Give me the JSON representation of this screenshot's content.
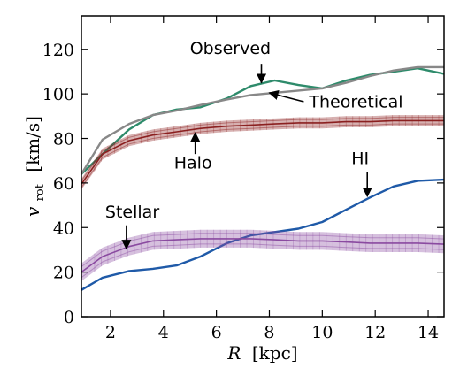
{
  "chart_data": {
    "type": "line",
    "xlabel_var": "R",
    "xlabel_unit": "[kpc]",
    "ylabel_var": "v",
    "ylabel_sub": "rot",
    "ylabel_unit": "[km/s]",
    "xlim": [
      0.9,
      14.6
    ],
    "ylim": [
      0,
      135
    ],
    "xticks": [
      2,
      4,
      6,
      8,
      10,
      12,
      14
    ],
    "yticks": [
      0,
      20,
      40,
      60,
      80,
      100,
      120
    ],
    "grid": false,
    "series": [
      {
        "key": "observed",
        "name": "Observed",
        "color": "#2e8b6b",
        "band": 0,
        "x": [
          0.9,
          1.7,
          2.7,
          3.6,
          4.5,
          5.4,
          6.4,
          7.3,
          8.2,
          9.1,
          10.0,
          10.9,
          11.8,
          12.7,
          13.6,
          14.6
        ],
        "y": [
          64,
          73,
          84,
          90.5,
          93,
          94,
          98,
          103.5,
          106,
          104,
          102.5,
          106,
          108.5,
          110,
          111.5,
          109
        ]
      },
      {
        "key": "theoretical",
        "name": "Theoretical",
        "color": "#888888",
        "band": 0,
        "x": [
          0.9,
          1.7,
          2.7,
          3.6,
          4.5,
          5.4,
          6.4,
          7.3,
          8.2,
          9.1,
          10.0,
          10.9,
          11.8,
          12.7,
          13.6,
          14.6
        ],
        "y": [
          64,
          79.5,
          86.5,
          90.5,
          92.5,
          95,
          97.5,
          99.5,
          100.5,
          101.5,
          102.5,
          105,
          108,
          110.5,
          112,
          112
        ]
      },
      {
        "key": "halo",
        "name": "Halo",
        "color": "#8b2020",
        "band": 2.5,
        "x": [
          0.9,
          1.7,
          2.7,
          3.6,
          4.5,
          5.4,
          6.4,
          7.3,
          8.2,
          9.1,
          10.0,
          10.9,
          11.8,
          12.7,
          13.6,
          14.6
        ],
        "y": [
          59.5,
          73,
          79,
          81.5,
          83,
          84.5,
          85.5,
          86,
          86.5,
          87,
          87,
          87.5,
          87.5,
          88,
          88,
          88
        ]
      },
      {
        "key": "hi",
        "name": "HI",
        "color": "#1f5aa8",
        "band": 0,
        "x": [
          0.9,
          1.7,
          2.7,
          3.6,
          4.5,
          5.4,
          6.4,
          7.3,
          8.2,
          9.1,
          10.0,
          10.9,
          11.8,
          12.7,
          13.6,
          14.6
        ],
        "y": [
          12,
          17.5,
          20.5,
          21.5,
          23,
          27,
          33,
          36.5,
          38,
          39.5,
          42.5,
          48,
          53.5,
          58.5,
          61,
          61.5
        ]
      },
      {
        "key": "stellar",
        "name": "Stellar",
        "color": "#8a4aa0",
        "band": 4,
        "x": [
          0.9,
          1.7,
          2.7,
          3.6,
          4.5,
          5.4,
          6.4,
          7.3,
          8.2,
          9.1,
          10.0,
          10.9,
          11.8,
          12.7,
          13.6,
          14.6
        ],
        "y": [
          20,
          27,
          31.5,
          34,
          34.5,
          35,
          35,
          35,
          34.5,
          34,
          34,
          33.5,
          33,
          33,
          33,
          32.5
        ]
      }
    ],
    "annotations": [
      {
        "key": "observed",
        "text": "Observed",
        "tx": 5.0,
        "ty": 118,
        "ax": 7.7,
        "ay": 105,
        "anchor": "start",
        "arrowFromX": 7.7,
        "arrowFromY": 113.5
      },
      {
        "key": "theoretical",
        "text": "Theoretical",
        "tx": 9.5,
        "ty": 94,
        "ax": 8.0,
        "ay": 100.5,
        "anchor": "start",
        "arrowFromX": 9.3,
        "arrowFromY": 96.5
      },
      {
        "key": "halo",
        "text": "Halo",
        "tx": 4.4,
        "ty": 66.5,
        "ax": 5.2,
        "ay": 82.5,
        "anchor": "start",
        "arrowFromX": 5.2,
        "arrowFromY": 73
      },
      {
        "key": "hi",
        "text": "HI",
        "tx": 11.1,
        "ty": 68.5,
        "ax": 11.7,
        "ay": 54,
        "anchor": "start",
        "arrowFromX": 11.7,
        "arrowFromY": 65
      },
      {
        "key": "stellar",
        "text": "Stellar",
        "tx": 1.8,
        "ty": 44.5,
        "ax": 2.6,
        "ay": 30.5,
        "anchor": "start",
        "arrowFromX": 2.6,
        "arrowFromY": 41
      }
    ]
  }
}
